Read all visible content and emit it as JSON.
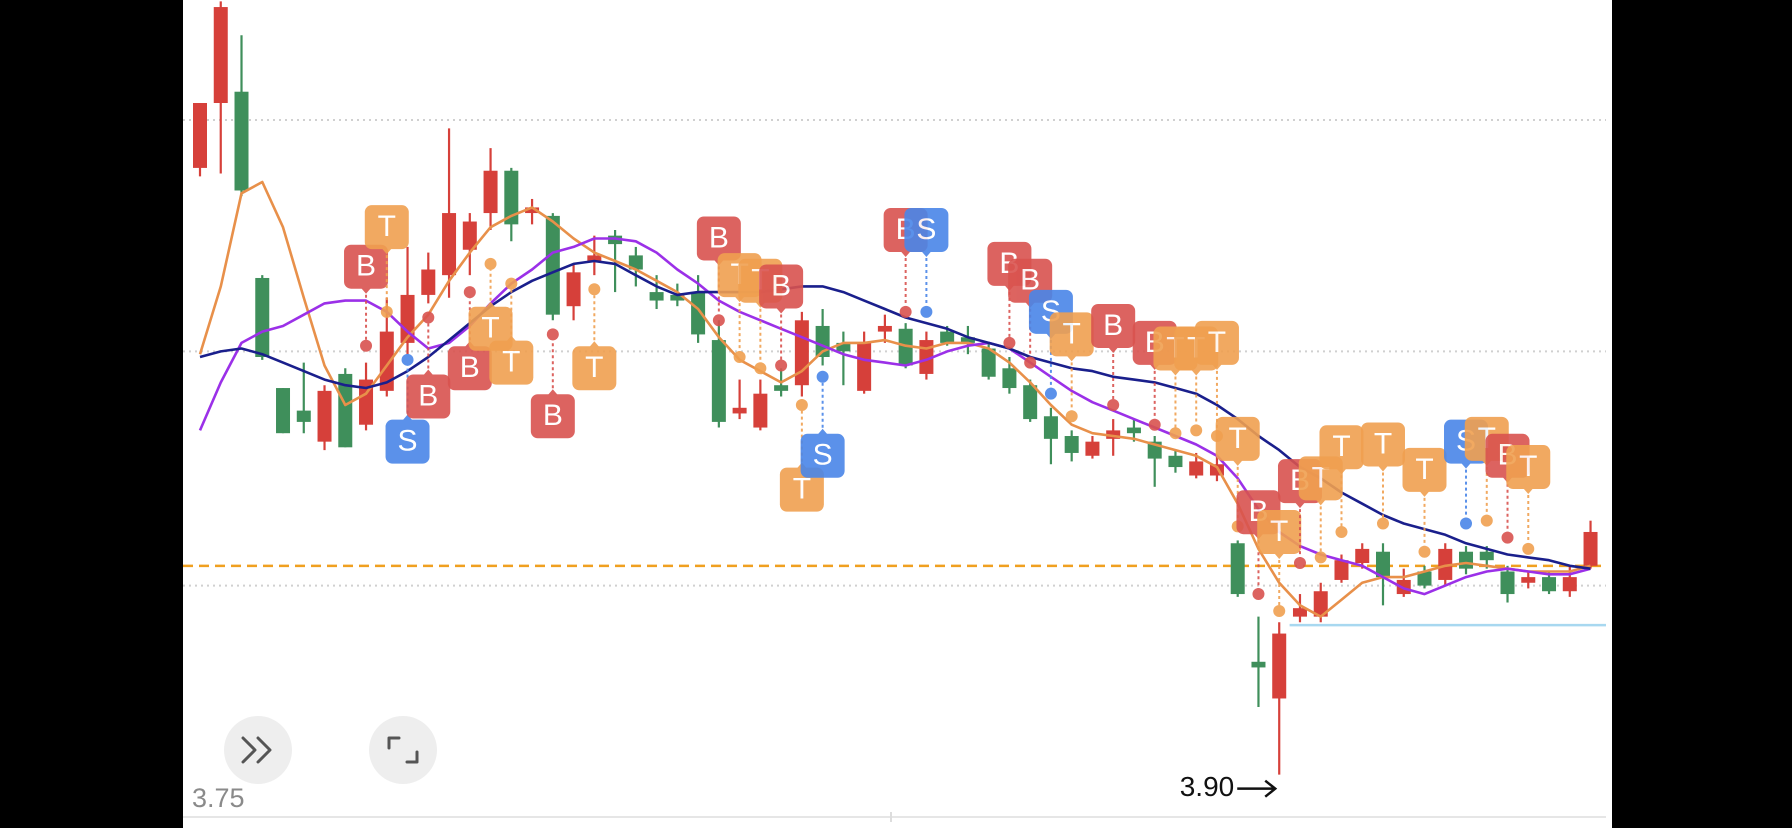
{
  "chart_data": {
    "type": "candlestick",
    "ylim": [
      3.75,
      6.645
    ],
    "yticks": [
      3.75
    ],
    "gridlines": [
      6.22,
      5.4,
      4.57
    ],
    "up_color": "#d6403a",
    "down_color": "#3f8f5b",
    "candles": {
      "open": [
        6.05,
        6.28,
        6.32,
        5.66,
        5.27,
        5.19,
        5.08,
        5.32,
        5.14,
        5.26,
        5.43,
        5.6,
        5.67,
        5.76,
        5.89,
        6.04,
        5.89,
        5.88,
        5.56,
        5.72,
        5.81,
        5.74,
        5.61,
        5.6,
        5.61,
        5.44,
        5.18,
        5.13,
        5.28,
        5.28,
        5.49,
        5.43,
        5.26,
        5.47,
        5.48,
        5.32,
        5.47,
        5.45,
        5.41,
        5.34,
        5.28,
        5.17,
        5.1,
        5.03,
        5.09,
        5.13,
        5.08,
        5.03,
        4.96,
        4.96,
        4.72,
        4.3,
        4.17,
        4.46,
        4.46,
        4.59,
        4.65,
        4.69,
        4.54,
        4.62,
        4.59,
        4.69,
        4.69,
        4.62,
        4.58,
        4.6,
        4.55,
        4.64
      ],
      "close": [
        6.28,
        6.62,
        5.97,
        5.38,
        5.11,
        5.15,
        5.26,
        5.06,
        5.3,
        5.47,
        5.6,
        5.69,
        5.89,
        5.86,
        6.04,
        5.85,
        5.91,
        5.53,
        5.68,
        5.74,
        5.78,
        5.69,
        5.58,
        5.58,
        5.46,
        5.15,
        5.2,
        5.25,
        5.26,
        5.51,
        5.38,
        5.4,
        5.43,
        5.49,
        5.35,
        5.44,
        5.43,
        5.43,
        5.31,
        5.27,
        5.16,
        5.09,
        5.04,
        5.08,
        5.12,
        5.11,
        5.02,
        4.99,
        5.01,
        5.0,
        4.54,
        4.28,
        4.4,
        4.49,
        4.55,
        4.66,
        4.7,
        4.6,
        4.59,
        4.57,
        4.7,
        4.63,
        4.66,
        4.54,
        4.6,
        4.55,
        4.6,
        4.76
      ],
      "high": [
        6.28,
        6.64,
        6.52,
        5.67,
        5.27,
        5.36,
        5.28,
        5.34,
        5.36,
        5.59,
        5.77,
        5.75,
        6.19,
        5.89,
        6.12,
        6.05,
        5.94,
        5.89,
        5.71,
        5.81,
        5.83,
        5.77,
        5.67,
        5.64,
        5.67,
        5.51,
        5.3,
        5.3,
        5.34,
        5.54,
        5.55,
        5.47,
        5.47,
        5.53,
        5.5,
        5.47,
        5.49,
        5.49,
        5.43,
        5.38,
        5.3,
        5.2,
        5.12,
        5.1,
        5.16,
        5.16,
        5.1,
        5.05,
        5.04,
        5.03,
        4.73,
        4.46,
        4.44,
        4.54,
        4.58,
        4.68,
        4.72,
        4.72,
        4.63,
        4.64,
        4.72,
        4.71,
        4.71,
        4.64,
        4.62,
        4.62,
        4.64,
        4.8
      ],
      "low": [
        6.02,
        6.03,
        5.95,
        5.37,
        5.11,
        5.11,
        5.05,
        5.06,
        5.12,
        5.24,
        5.39,
        5.57,
        5.59,
        5.67,
        5.83,
        5.79,
        5.85,
        5.51,
        5.51,
        5.67,
        5.61,
        5.63,
        5.55,
        5.56,
        5.43,
        5.13,
        5.16,
        5.12,
        5.24,
        5.24,
        5.35,
        5.28,
        5.25,
        5.43,
        5.34,
        5.3,
        5.42,
        5.39,
        5.3,
        5.25,
        5.15,
        5.0,
        5.01,
        5.02,
        5.03,
        5.08,
        4.92,
        4.97,
        4.95,
        4.94,
        4.53,
        4.14,
        3.9,
        4.44,
        4.44,
        4.58,
        4.63,
        4.5,
        4.53,
        4.56,
        4.57,
        4.61,
        4.63,
        4.51,
        4.56,
        4.54,
        4.53,
        4.63
      ]
    },
    "lines": [
      {
        "color": "#e8904a",
        "values": [
          5.39,
          5.63,
          5.96,
          6.0,
          5.84,
          5.59,
          5.35,
          5.21,
          5.25,
          5.35,
          5.45,
          5.53,
          5.65,
          5.75,
          5.84,
          5.88,
          5.91,
          5.86,
          5.8,
          5.75,
          5.72,
          5.69,
          5.65,
          5.61,
          5.55,
          5.45,
          5.37,
          5.33,
          5.29,
          5.33,
          5.4,
          5.43,
          5.43,
          5.44,
          5.42,
          5.41,
          5.43,
          5.43,
          5.41,
          5.36,
          5.29,
          5.21,
          5.14,
          5.11,
          5.1,
          5.09,
          5.07,
          5.05,
          5.03,
          4.99,
          4.86,
          4.7,
          4.58,
          4.5,
          4.46,
          4.52,
          4.58,
          4.6,
          4.6,
          4.62,
          4.64,
          4.65,
          4.64,
          4.63,
          4.62,
          4.62,
          4.62,
          4.64
        ]
      },
      {
        "color": "#9b30e8",
        "values": [
          5.12,
          5.29,
          5.43,
          5.47,
          5.49,
          5.53,
          5.57,
          5.58,
          5.58,
          5.54,
          5.47,
          5.41,
          5.43,
          5.49,
          5.57,
          5.64,
          5.69,
          5.75,
          5.77,
          5.8,
          5.8,
          5.79,
          5.75,
          5.69,
          5.64,
          5.58,
          5.54,
          5.51,
          5.48,
          5.45,
          5.42,
          5.39,
          5.37,
          5.36,
          5.35,
          5.37,
          5.4,
          5.42,
          5.43,
          5.41,
          5.36,
          5.31,
          5.26,
          5.22,
          5.19,
          5.16,
          5.13,
          5.1,
          5.07,
          5.03,
          4.95,
          4.84,
          4.76,
          4.71,
          4.68,
          4.66,
          4.64,
          4.6,
          4.56,
          4.54,
          4.57,
          4.6,
          4.62,
          4.63,
          4.62,
          4.61,
          4.61,
          4.63
        ]
      },
      {
        "color": "#1a1f8c",
        "values": [
          5.38,
          5.4,
          5.41,
          5.39,
          5.36,
          5.33,
          5.3,
          5.28,
          5.27,
          5.29,
          5.33,
          5.38,
          5.44,
          5.5,
          5.56,
          5.61,
          5.65,
          5.68,
          5.71,
          5.72,
          5.71,
          5.67,
          5.63,
          5.6,
          5.61,
          5.61,
          5.61,
          5.61,
          5.62,
          5.63,
          5.63,
          5.61,
          5.58,
          5.55,
          5.52,
          5.5,
          5.48,
          5.45,
          5.43,
          5.41,
          5.38,
          5.36,
          5.34,
          5.33,
          5.31,
          5.3,
          5.29,
          5.27,
          5.25,
          5.21,
          5.16,
          5.1,
          5.05,
          4.99,
          4.95,
          4.9,
          4.86,
          4.82,
          4.79,
          4.77,
          4.75,
          4.72,
          4.7,
          4.68,
          4.67,
          4.66,
          4.64,
          4.63
        ]
      }
    ],
    "price_line": {
      "value": 4.64,
      "color": "#f0a020"
    },
    "support_line": {
      "value": 4.43,
      "color": "#a8d8f0",
      "from_index": 53
    },
    "signal_colors": {
      "B": "#d9534f",
      "S": "#4a86e8",
      "T": "#f0a050"
    },
    "signals": [
      {
        "label": "B",
        "index": 8,
        "badge": 5.7,
        "dot": 5.42
      },
      {
        "label": "T",
        "index": 9,
        "badge": 5.84,
        "dot": 5.54
      },
      {
        "label": "S",
        "index": 10,
        "badge": 5.08,
        "dot": 5.37
      },
      {
        "label": "B",
        "index": 11,
        "badge": 5.24,
        "dot": 5.52
      },
      {
        "label": "B",
        "index": 13,
        "badge": 5.34,
        "dot": 5.61
      },
      {
        "label": "T",
        "index": 14,
        "badge": 5.48,
        "dot": 5.71
      },
      {
        "label": "T",
        "index": 15,
        "badge": 5.36,
        "dot": 5.64
      },
      {
        "label": "B",
        "index": 17,
        "badge": 5.17,
        "dot": 5.46
      },
      {
        "label": "T",
        "index": 19,
        "badge": 5.34,
        "dot": 5.62
      },
      {
        "label": "B",
        "index": 25,
        "badge": 5.8,
        "dot": 5.51
      },
      {
        "label": "T",
        "index": 26,
        "badge": 5.67,
        "dot": 5.38
      },
      {
        "label": "T",
        "index": 27,
        "badge": 5.65,
        "dot": 5.34
      },
      {
        "label": "B",
        "index": 28,
        "badge": 5.63,
        "dot": 5.35
      },
      {
        "label": "T",
        "index": 29,
        "badge": 4.91,
        "dot": 5.21
      },
      {
        "label": "S",
        "index": 30,
        "badge": 5.03,
        "dot": 5.31
      },
      {
        "label": "B",
        "index": 34,
        "badge": 5.83,
        "dot": 5.54
      },
      {
        "label": "S",
        "index": 35,
        "badge": 5.83,
        "dot": 5.54
      },
      {
        "label": "B",
        "index": 39,
        "badge": 5.71,
        "dot": 5.43
      },
      {
        "label": "B",
        "index": 40,
        "badge": 5.65,
        "dot": 5.36
      },
      {
        "label": "S",
        "index": 41,
        "badge": 5.54,
        "dot": 5.25
      },
      {
        "label": "T",
        "index": 42,
        "badge": 5.46,
        "dot": 5.17
      },
      {
        "label": "B",
        "index": 44,
        "badge": 5.49,
        "dot": 5.21
      },
      {
        "label": "B",
        "index": 46,
        "badge": 5.43,
        "dot": 5.14
      },
      {
        "label": "T",
        "index": 47,
        "badge": 5.41,
        "dot": 5.11
      },
      {
        "label": "T",
        "index": 48,
        "badge": 5.41,
        "dot": 5.12
      },
      {
        "label": "T",
        "index": 49,
        "badge": 5.43,
        "dot": 5.1
      },
      {
        "label": "T",
        "index": 50,
        "badge": 5.09,
        "dot": 4.78
      },
      {
        "label": "B",
        "index": 51,
        "badge": 4.83,
        "dot": 4.54
      },
      {
        "label": "T",
        "index": 52,
        "badge": 4.76,
        "dot": 4.48
      },
      {
        "label": "B",
        "index": 53,
        "badge": 4.94,
        "dot": 4.65
      },
      {
        "label": "T",
        "index": 54,
        "badge": 4.95,
        "dot": 4.67
      },
      {
        "label": "T",
        "index": 55,
        "badge": 5.06,
        "dot": 4.76
      },
      {
        "label": "T",
        "index": 57,
        "badge": 5.07,
        "dot": 4.79
      },
      {
        "label": "T",
        "index": 59,
        "badge": 4.98,
        "dot": 4.69
      },
      {
        "label": "S",
        "index": 61,
        "badge": 5.08,
        "dot": 4.79
      },
      {
        "label": "T",
        "index": 62,
        "badge": 5.09,
        "dot": 4.8
      },
      {
        "label": "B",
        "index": 63,
        "badge": 5.03,
        "dot": 4.74
      },
      {
        "label": "T",
        "index": 64,
        "badge": 4.99,
        "dot": 4.7
      }
    ],
    "low_marker": {
      "index": 52,
      "value": 3.9,
      "label": "3.90"
    }
  }
}
